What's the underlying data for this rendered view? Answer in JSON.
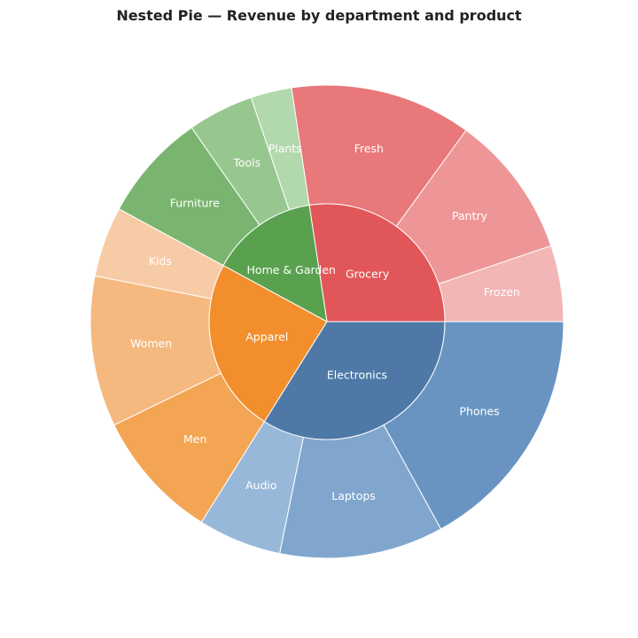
{
  "chart_data": {
    "type": "pie",
    "subtype": "nested-donut",
    "title": "Nested Pie — Revenue by department and product",
    "unit": "share of total revenue (%)",
    "start_angle_deg": 0,
    "direction": "counterclockwise",
    "inner": [
      {
        "name": "Grocery",
        "value": 27.4,
        "color": "#e15759"
      },
      {
        "name": "Home & Garden",
        "value": 14.7,
        "color": "#59a14f"
      },
      {
        "name": "Apparel",
        "value": 24.0,
        "color": "#f28e2b"
      },
      {
        "name": "Electronics",
        "value": 33.9,
        "color": "#4e79a7"
      }
    ],
    "outer": [
      {
        "name": "Frozen",
        "parent": "Grocery",
        "value": 5.2,
        "color": "#f2b6b6"
      },
      {
        "name": "Pantry",
        "parent": "Grocery",
        "value": 9.8,
        "color": "#ee9697"
      },
      {
        "name": "Fresh",
        "parent": "Grocery",
        "value": 12.4,
        "color": "#e8787a"
      },
      {
        "name": "Plants",
        "parent": "Home & Garden",
        "value": 2.8,
        "color": "#b2d8ad"
      },
      {
        "name": "Tools",
        "parent": "Home & Garden",
        "value": 4.5,
        "color": "#97c78e"
      },
      {
        "name": "Furniture",
        "parent": "Home & Garden",
        "value": 7.4,
        "color": "#7ab56f"
      },
      {
        "name": "Kids",
        "parent": "Apparel",
        "value": 4.8,
        "color": "#f8cba7"
      },
      {
        "name": "Women",
        "parent": "Apparel",
        "value": 10.3,
        "color": "#f5b97f"
      },
      {
        "name": "Men",
        "parent": "Apparel",
        "value": 8.9,
        "color": "#f3a554"
      },
      {
        "name": "Audio",
        "parent": "Electronics",
        "value": 5.7,
        "color": "#98b8da"
      },
      {
        "name": "Laptops",
        "parent": "Electronics",
        "value": 11.2,
        "color": "#80a6cd"
      },
      {
        "name": "Phones",
        "parent": "Electronics",
        "value": 17.0,
        "color": "#6994c1"
      }
    ]
  }
}
